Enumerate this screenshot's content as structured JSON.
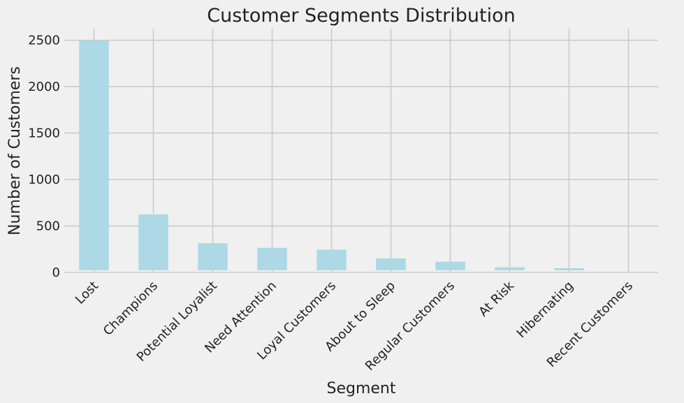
{
  "chart_data": {
    "type": "bar",
    "title": "Customer Segments Distribution",
    "xlabel": "Segment",
    "ylabel": "Number of Customers",
    "categories": [
      "Lost",
      "Champions",
      "Potential Loyalist",
      "Need Attention",
      "Loyal Customers",
      "About to Sleep",
      "Regular Customers",
      "At Risk",
      "Hibernating",
      "Recent Customers"
    ],
    "values": [
      2500,
      625,
      315,
      265,
      245,
      150,
      115,
      55,
      45,
      20
    ],
    "yticks": [
      "0",
      "500",
      "1000",
      "1500",
      "2000",
      "2500"
    ],
    "ytick_values": [
      0,
      500,
      1000,
      1500,
      2000,
      2500
    ],
    "ylim": [
      0,
      2625
    ],
    "bar_color": "#add8e6",
    "background_color": "#f0f0f0",
    "grid": true,
    "x_tick_rotation": 45
  }
}
